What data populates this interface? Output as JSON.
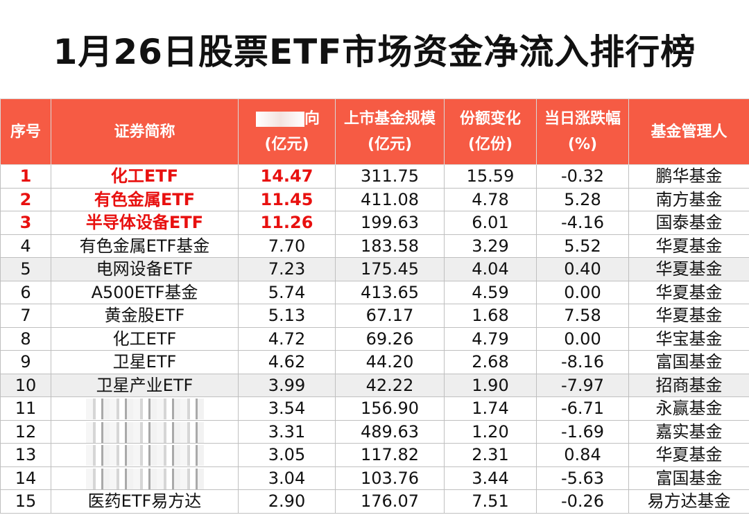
{
  "title": "1月26日股票ETF市场资金净流入排行榜",
  "headers": {
    "rank": "序号",
    "name": "证券简称",
    "inflow_top": "向",
    "inflow_unit": "(亿元)",
    "scale_top": "上市基金规模",
    "scale_unit": "(亿元)",
    "share_top": "份额变化",
    "share_unit": "(亿份)",
    "change_top": "当日涨跌幅",
    "change_unit": "(%)",
    "manager": "基金管理人"
  },
  "rows": [
    {
      "rank": "1",
      "name": "化工ETF",
      "inflow": "14.47",
      "scale": "311.75",
      "share": "15.59",
      "change": "-0.32",
      "manager": "鹏华基金"
    },
    {
      "rank": "2",
      "name": "有色金属ETF",
      "inflow": "11.45",
      "scale": "411.08",
      "share": "4.78",
      "change": "5.28",
      "manager": "南方基金"
    },
    {
      "rank": "3",
      "name": "半导体设备ETF",
      "inflow": "11.26",
      "scale": "199.63",
      "share": "6.01",
      "change": "-4.16",
      "manager": "国泰基金"
    },
    {
      "rank": "4",
      "name": "有色金属ETF基金",
      "inflow": "7.70",
      "scale": "183.58",
      "share": "3.29",
      "change": "5.52",
      "manager": "华夏基金"
    },
    {
      "rank": "5",
      "name": "电网设备ETF",
      "inflow": "7.23",
      "scale": "175.45",
      "share": "4.04",
      "change": "0.40",
      "manager": "华夏基金"
    },
    {
      "rank": "6",
      "name": "A500ETF基金",
      "inflow": "5.74",
      "scale": "413.65",
      "share": "4.59",
      "change": "0.00",
      "manager": "华夏基金"
    },
    {
      "rank": "7",
      "name": "黄金股ETF",
      "inflow": "5.13",
      "scale": "67.17",
      "share": "1.68",
      "change": "7.58",
      "manager": "华夏基金"
    },
    {
      "rank": "8",
      "name": "化工ETF",
      "inflow": "4.72",
      "scale": "69.26",
      "share": "4.79",
      "change": "0.00",
      "manager": "华宝基金"
    },
    {
      "rank": "9",
      "name": "卫星ETF",
      "inflow": "4.62",
      "scale": "44.20",
      "share": "2.68",
      "change": "-8.16",
      "manager": "富国基金"
    },
    {
      "rank": "10",
      "name": "卫星产业ETF",
      "inflow": "3.99",
      "scale": "42.22",
      "share": "1.90",
      "change": "-7.97",
      "manager": "招商基金"
    },
    {
      "rank": "11",
      "name": "",
      "inflow": "3.54",
      "scale": "156.90",
      "share": "1.74",
      "change": "-6.71",
      "manager": "永赢基金"
    },
    {
      "rank": "12",
      "name": "",
      "inflow": "3.31",
      "scale": "489.63",
      "share": "1.20",
      "change": "-1.69",
      "manager": "嘉实基金"
    },
    {
      "rank": "13",
      "name": "",
      "inflow": "3.05",
      "scale": "117.82",
      "share": "2.31",
      "change": "0.84",
      "manager": "华夏基金"
    },
    {
      "rank": "14",
      "name": "",
      "inflow": "3.04",
      "scale": "103.76",
      "share": "3.44",
      "change": "-5.63",
      "manager": "富国基金"
    },
    {
      "rank": "15",
      "name": "医药ETF易方达",
      "inflow": "2.90",
      "scale": "176.07",
      "share": "7.51",
      "change": "-0.26",
      "manager": "易方达基金"
    }
  ],
  "colors": {
    "header_bg": "#f65b44",
    "highlight_text": "#e8100f",
    "shaded_row": "#eeeeee"
  },
  "chart_data": {
    "type": "table",
    "title": "1月26日股票ETF市场资金净流入排行榜",
    "columns": [
      "序号",
      "证券简称",
      "(亿元)",
      "上市基金规模(亿元)",
      "份额变化(亿份)",
      "当日涨跌幅(%)",
      "基金管理人"
    ],
    "net_inflow": [
      14.47,
      11.45,
      11.26,
      7.7,
      7.23,
      5.74,
      5.13,
      4.72,
      4.62,
      3.99,
      3.54,
      3.31,
      3.05,
      3.04,
      2.9
    ],
    "scale": [
      311.75,
      411.08,
      199.63,
      183.58,
      175.45,
      413.65,
      67.17,
      69.26,
      44.2,
      42.22,
      156.9,
      489.63,
      117.82,
      103.76,
      176.07
    ],
    "share_change": [
      15.59,
      4.78,
      6.01,
      3.29,
      4.04,
      4.59,
      1.68,
      4.79,
      2.68,
      1.9,
      1.74,
      1.2,
      2.31,
      3.44,
      7.51
    ],
    "daily_change_pct": [
      -0.32,
      5.28,
      -4.16,
      5.52,
      0.4,
      0.0,
      7.58,
      0.0,
      -8.16,
      -7.97,
      -6.71,
      -1.69,
      0.84,
      -5.63,
      -0.26
    ]
  }
}
